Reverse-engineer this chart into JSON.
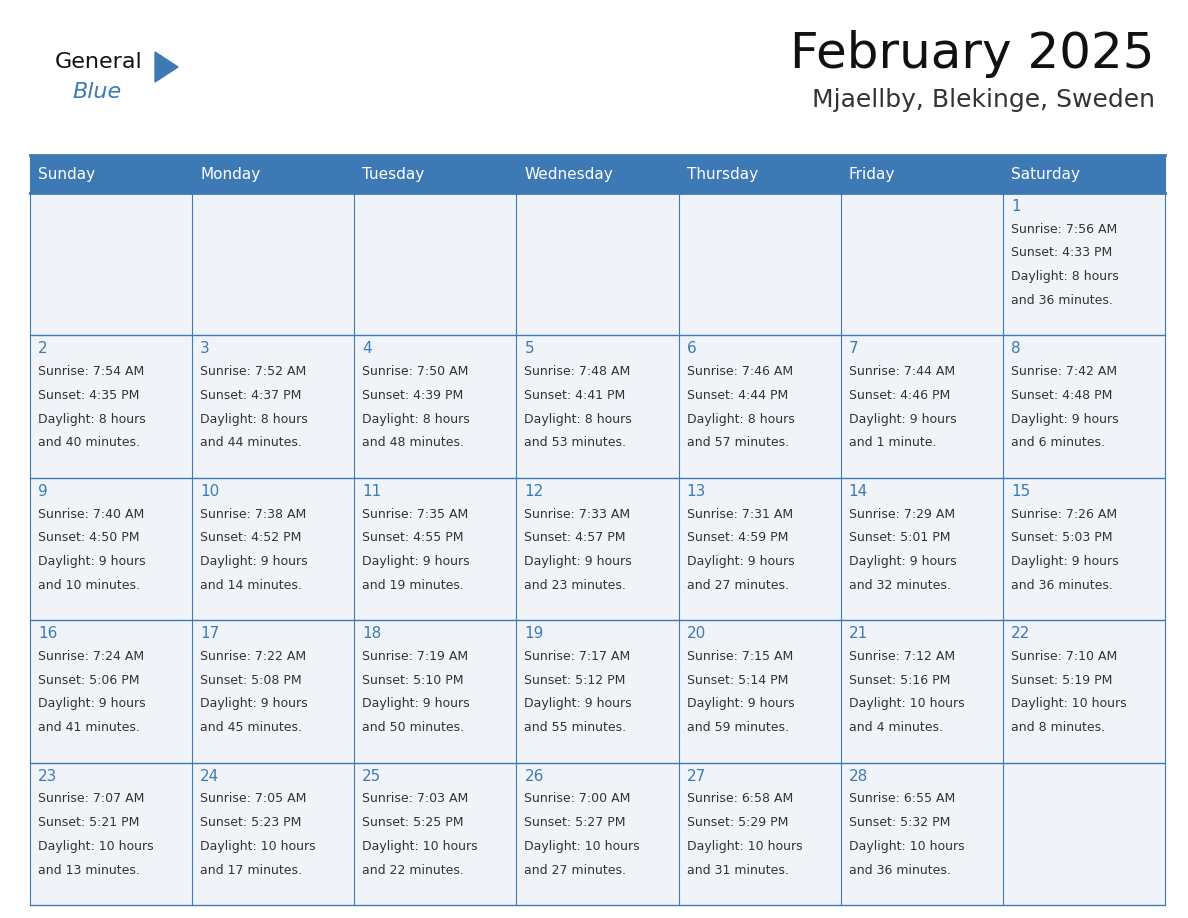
{
  "title": "February 2025",
  "subtitle": "Mjaellby, Blekinge, Sweden",
  "days_of_week": [
    "Sunday",
    "Monday",
    "Tuesday",
    "Wednesday",
    "Thursday",
    "Friday",
    "Saturday"
  ],
  "header_bg_color": "#3d7ab5",
  "header_text_color": "#ffffff",
  "cell_bg_even": "#f0f4f8",
  "cell_bg_odd": "#ffffff",
  "border_color": "#3d7ab5",
  "day_number_color": "#3d7ab5",
  "cell_text_color": "#333333",
  "title_color": "#111111",
  "subtitle_color": "#333333",
  "logo_general_color": "#111111",
  "logo_blue_color": "#3d7ab5",
  "calendar_data": [
    {
      "day": 1,
      "col": 6,
      "row": 0,
      "sunrise": "7:56 AM",
      "sunset": "4:33 PM",
      "daylight_line1": "Daylight: 8 hours",
      "daylight_line2": "and 36 minutes."
    },
    {
      "day": 2,
      "col": 0,
      "row": 1,
      "sunrise": "7:54 AM",
      "sunset": "4:35 PM",
      "daylight_line1": "Daylight: 8 hours",
      "daylight_line2": "and 40 minutes."
    },
    {
      "day": 3,
      "col": 1,
      "row": 1,
      "sunrise": "7:52 AM",
      "sunset": "4:37 PM",
      "daylight_line1": "Daylight: 8 hours",
      "daylight_line2": "and 44 minutes."
    },
    {
      "day": 4,
      "col": 2,
      "row": 1,
      "sunrise": "7:50 AM",
      "sunset": "4:39 PM",
      "daylight_line1": "Daylight: 8 hours",
      "daylight_line2": "and 48 minutes."
    },
    {
      "day": 5,
      "col": 3,
      "row": 1,
      "sunrise": "7:48 AM",
      "sunset": "4:41 PM",
      "daylight_line1": "Daylight: 8 hours",
      "daylight_line2": "and 53 minutes."
    },
    {
      "day": 6,
      "col": 4,
      "row": 1,
      "sunrise": "7:46 AM",
      "sunset": "4:44 PM",
      "daylight_line1": "Daylight: 8 hours",
      "daylight_line2": "and 57 minutes."
    },
    {
      "day": 7,
      "col": 5,
      "row": 1,
      "sunrise": "7:44 AM",
      "sunset": "4:46 PM",
      "daylight_line1": "Daylight: 9 hours",
      "daylight_line2": "and 1 minute."
    },
    {
      "day": 8,
      "col": 6,
      "row": 1,
      "sunrise": "7:42 AM",
      "sunset": "4:48 PM",
      "daylight_line1": "Daylight: 9 hours",
      "daylight_line2": "and 6 minutes."
    },
    {
      "day": 9,
      "col": 0,
      "row": 2,
      "sunrise": "7:40 AM",
      "sunset": "4:50 PM",
      "daylight_line1": "Daylight: 9 hours",
      "daylight_line2": "and 10 minutes."
    },
    {
      "day": 10,
      "col": 1,
      "row": 2,
      "sunrise": "7:38 AM",
      "sunset": "4:52 PM",
      "daylight_line1": "Daylight: 9 hours",
      "daylight_line2": "and 14 minutes."
    },
    {
      "day": 11,
      "col": 2,
      "row": 2,
      "sunrise": "7:35 AM",
      "sunset": "4:55 PM",
      "daylight_line1": "Daylight: 9 hours",
      "daylight_line2": "and 19 minutes."
    },
    {
      "day": 12,
      "col": 3,
      "row": 2,
      "sunrise": "7:33 AM",
      "sunset": "4:57 PM",
      "daylight_line1": "Daylight: 9 hours",
      "daylight_line2": "and 23 minutes."
    },
    {
      "day": 13,
      "col": 4,
      "row": 2,
      "sunrise": "7:31 AM",
      "sunset": "4:59 PM",
      "daylight_line1": "Daylight: 9 hours",
      "daylight_line2": "and 27 minutes."
    },
    {
      "day": 14,
      "col": 5,
      "row": 2,
      "sunrise": "7:29 AM",
      "sunset": "5:01 PM",
      "daylight_line1": "Daylight: 9 hours",
      "daylight_line2": "and 32 minutes."
    },
    {
      "day": 15,
      "col": 6,
      "row": 2,
      "sunrise": "7:26 AM",
      "sunset": "5:03 PM",
      "daylight_line1": "Daylight: 9 hours",
      "daylight_line2": "and 36 minutes."
    },
    {
      "day": 16,
      "col": 0,
      "row": 3,
      "sunrise": "7:24 AM",
      "sunset": "5:06 PM",
      "daylight_line1": "Daylight: 9 hours",
      "daylight_line2": "and 41 minutes."
    },
    {
      "day": 17,
      "col": 1,
      "row": 3,
      "sunrise": "7:22 AM",
      "sunset": "5:08 PM",
      "daylight_line1": "Daylight: 9 hours",
      "daylight_line2": "and 45 minutes."
    },
    {
      "day": 18,
      "col": 2,
      "row": 3,
      "sunrise": "7:19 AM",
      "sunset": "5:10 PM",
      "daylight_line1": "Daylight: 9 hours",
      "daylight_line2": "and 50 minutes."
    },
    {
      "day": 19,
      "col": 3,
      "row": 3,
      "sunrise": "7:17 AM",
      "sunset": "5:12 PM",
      "daylight_line1": "Daylight: 9 hours",
      "daylight_line2": "and 55 minutes."
    },
    {
      "day": 20,
      "col": 4,
      "row": 3,
      "sunrise": "7:15 AM",
      "sunset": "5:14 PM",
      "daylight_line1": "Daylight: 9 hours",
      "daylight_line2": "and 59 minutes."
    },
    {
      "day": 21,
      "col": 5,
      "row": 3,
      "sunrise": "7:12 AM",
      "sunset": "5:16 PM",
      "daylight_line1": "Daylight: 10 hours",
      "daylight_line2": "and 4 minutes."
    },
    {
      "day": 22,
      "col": 6,
      "row": 3,
      "sunrise": "7:10 AM",
      "sunset": "5:19 PM",
      "daylight_line1": "Daylight: 10 hours",
      "daylight_line2": "and 8 minutes."
    },
    {
      "day": 23,
      "col": 0,
      "row": 4,
      "sunrise": "7:07 AM",
      "sunset": "5:21 PM",
      "daylight_line1": "Daylight: 10 hours",
      "daylight_line2": "and 13 minutes."
    },
    {
      "day": 24,
      "col": 1,
      "row": 4,
      "sunrise": "7:05 AM",
      "sunset": "5:23 PM",
      "daylight_line1": "Daylight: 10 hours",
      "daylight_line2": "and 17 minutes."
    },
    {
      "day": 25,
      "col": 2,
      "row": 4,
      "sunrise": "7:03 AM",
      "sunset": "5:25 PM",
      "daylight_line1": "Daylight: 10 hours",
      "daylight_line2": "and 22 minutes."
    },
    {
      "day": 26,
      "col": 3,
      "row": 4,
      "sunrise": "7:00 AM",
      "sunset": "5:27 PM",
      "daylight_line1": "Daylight: 10 hours",
      "daylight_line2": "and 27 minutes."
    },
    {
      "day": 27,
      "col": 4,
      "row": 4,
      "sunrise": "6:58 AM",
      "sunset": "5:29 PM",
      "daylight_line1": "Daylight: 10 hours",
      "daylight_line2": "and 31 minutes."
    },
    {
      "day": 28,
      "col": 5,
      "row": 4,
      "sunrise": "6:55 AM",
      "sunset": "5:32 PM",
      "daylight_line1": "Daylight: 10 hours",
      "daylight_line2": "and 36 minutes."
    }
  ],
  "num_rows": 5,
  "num_cols": 7
}
